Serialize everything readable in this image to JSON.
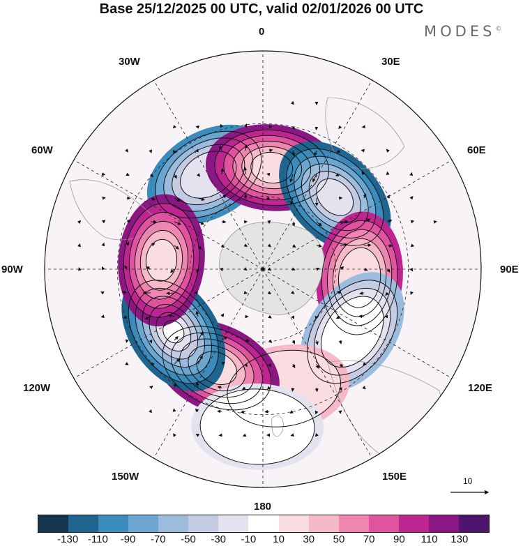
{
  "title": "Base 25/12/2025 00 UTC, valid 02/01/2026 00 UTC",
  "brand": "MODES",
  "brand_mark": "©",
  "longitude_labels": {
    "lon_0": "0",
    "lon_30e": "30E",
    "lon_60e": "60E",
    "lon_90e": "90E",
    "lon_120e": "120E",
    "lon_150e": "150E",
    "lon_180": "180",
    "lon_150w": "150W",
    "lon_120w": "120W",
    "lon_90w": "90W",
    "lon_60w": "60W",
    "lon_30w": "30W"
  },
  "vector_scale": {
    "label": "10"
  },
  "colorbar": {
    "colors": [
      "#17364f",
      "#1f6590",
      "#3b8bbd",
      "#6aa6d0",
      "#9cbcdd",
      "#c4cbe2",
      "#e5e2ef",
      "#ffffff",
      "#f9dde0",
      "#f5b9c8",
      "#ef86b2",
      "#e0539f",
      "#bf2590",
      "#8a1784",
      "#4f156e"
    ],
    "ticks": [
      "-130",
      "-110",
      "-90",
      "-70",
      "-50",
      "-30",
      "-10",
      "10",
      "30",
      "50",
      "70",
      "90",
      "110",
      "130"
    ]
  },
  "anomaly_centers": [
    {
      "name": "30W negative",
      "lon": -30,
      "lat": -45,
      "value": -100
    },
    {
      "name": "0 positive",
      "lon": 5,
      "lat": -48,
      "value": 110
    },
    {
      "name": "45E negative",
      "lon": 45,
      "lat": -48,
      "value": -120
    },
    {
      "name": "95E positive",
      "lon": 95,
      "lat": -50,
      "value": 90
    },
    {
      "name": "130E negative",
      "lon": 125,
      "lat": -45,
      "value": -70
    },
    {
      "name": "170E positive",
      "lon": 170,
      "lat": -40,
      "value": 40
    },
    {
      "name": "155W positive",
      "lon": -155,
      "lat": -45,
      "value": 110
    },
    {
      "name": "125W negative",
      "lon": -125,
      "lat": -45,
      "value": -130
    },
    {
      "name": "180 negative",
      "lon": -178,
      "lat": -25,
      "value": -30
    },
    {
      "name": "85W positive",
      "lon": -85,
      "lat": -48,
      "value": 110
    }
  ]
}
